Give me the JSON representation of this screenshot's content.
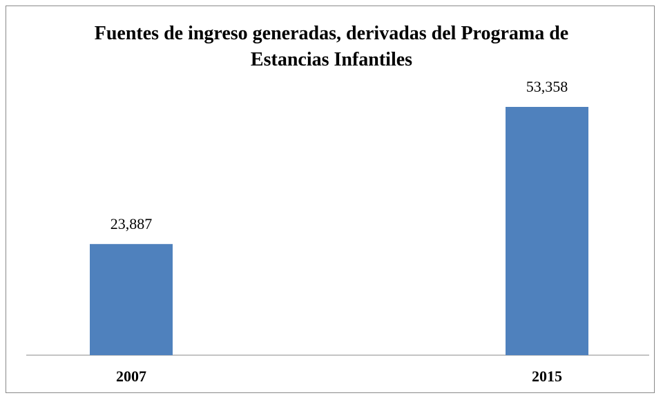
{
  "chart_data": {
    "type": "bar",
    "title": "Fuentes de ingreso generadas, derivadas del Programa de Estancias Infantiles",
    "categories": [
      "2007",
      "2015"
    ],
    "values": [
      23887,
      53358
    ],
    "value_labels": [
      "23,887",
      "53,358"
    ],
    "color": "#4f81bd"
  }
}
